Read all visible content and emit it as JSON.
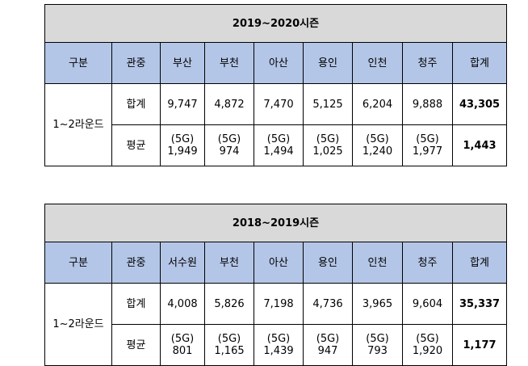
{
  "tables": [
    {
      "title": "2019~2020시즌",
      "header": [
        "구분",
        "관중",
        "부산",
        "부천",
        "아산",
        "용인",
        "인천",
        "청주",
        "합계"
      ],
      "row_label": "1~2라운드",
      "rows": [
        {
          "label": "합계",
          "cells": [
            {
              "value": "9,747"
            },
            {
              "value": "4,872"
            },
            {
              "value": "7,470"
            },
            {
              "value": "5,125"
            },
            {
              "value": "6,204"
            },
            {
              "value": "9,888"
            },
            {
              "value": "43,305"
            }
          ]
        },
        {
          "label": "평균",
          "cells": [
            {
              "note": "(5G)",
              "value": "1,949"
            },
            {
              "note": "(5G)",
              "value": "974"
            },
            {
              "note": "(5G)",
              "value": "1,494"
            },
            {
              "note": "(5G)",
              "value": "1,025"
            },
            {
              "note": "(5G)",
              "value": "1,240"
            },
            {
              "note": "(5G)",
              "value": "1,977"
            },
            {
              "value": "1,443"
            }
          ]
        }
      ]
    },
    {
      "title": "2018~2019시즌",
      "header": [
        "구분",
        "관중",
        "서수원",
        "부천",
        "아산",
        "용인",
        "인천",
        "청주",
        "합계"
      ],
      "row_label": "1~2라운드",
      "rows": [
        {
          "label": "합계",
          "cells": [
            {
              "value": "4,008"
            },
            {
              "value": "5,826"
            },
            {
              "value": "7,198"
            },
            {
              "value": "4,736"
            },
            {
              "value": "3,965"
            },
            {
              "value": "9,604"
            },
            {
              "value": "35,337"
            }
          ]
        },
        {
          "label": "평균",
          "cells": [
            {
              "note": "(5G)",
              "value": "801"
            },
            {
              "note": "(5G)",
              "value": "1,165"
            },
            {
              "note": "(5G)",
              "value": "1,439"
            },
            {
              "note": "(5G)",
              "value": "947"
            },
            {
              "note": "(5G)",
              "value": "793"
            },
            {
              "note": "(5G)",
              "value": "1,920"
            },
            {
              "value": "1,177"
            }
          ]
        }
      ]
    }
  ]
}
